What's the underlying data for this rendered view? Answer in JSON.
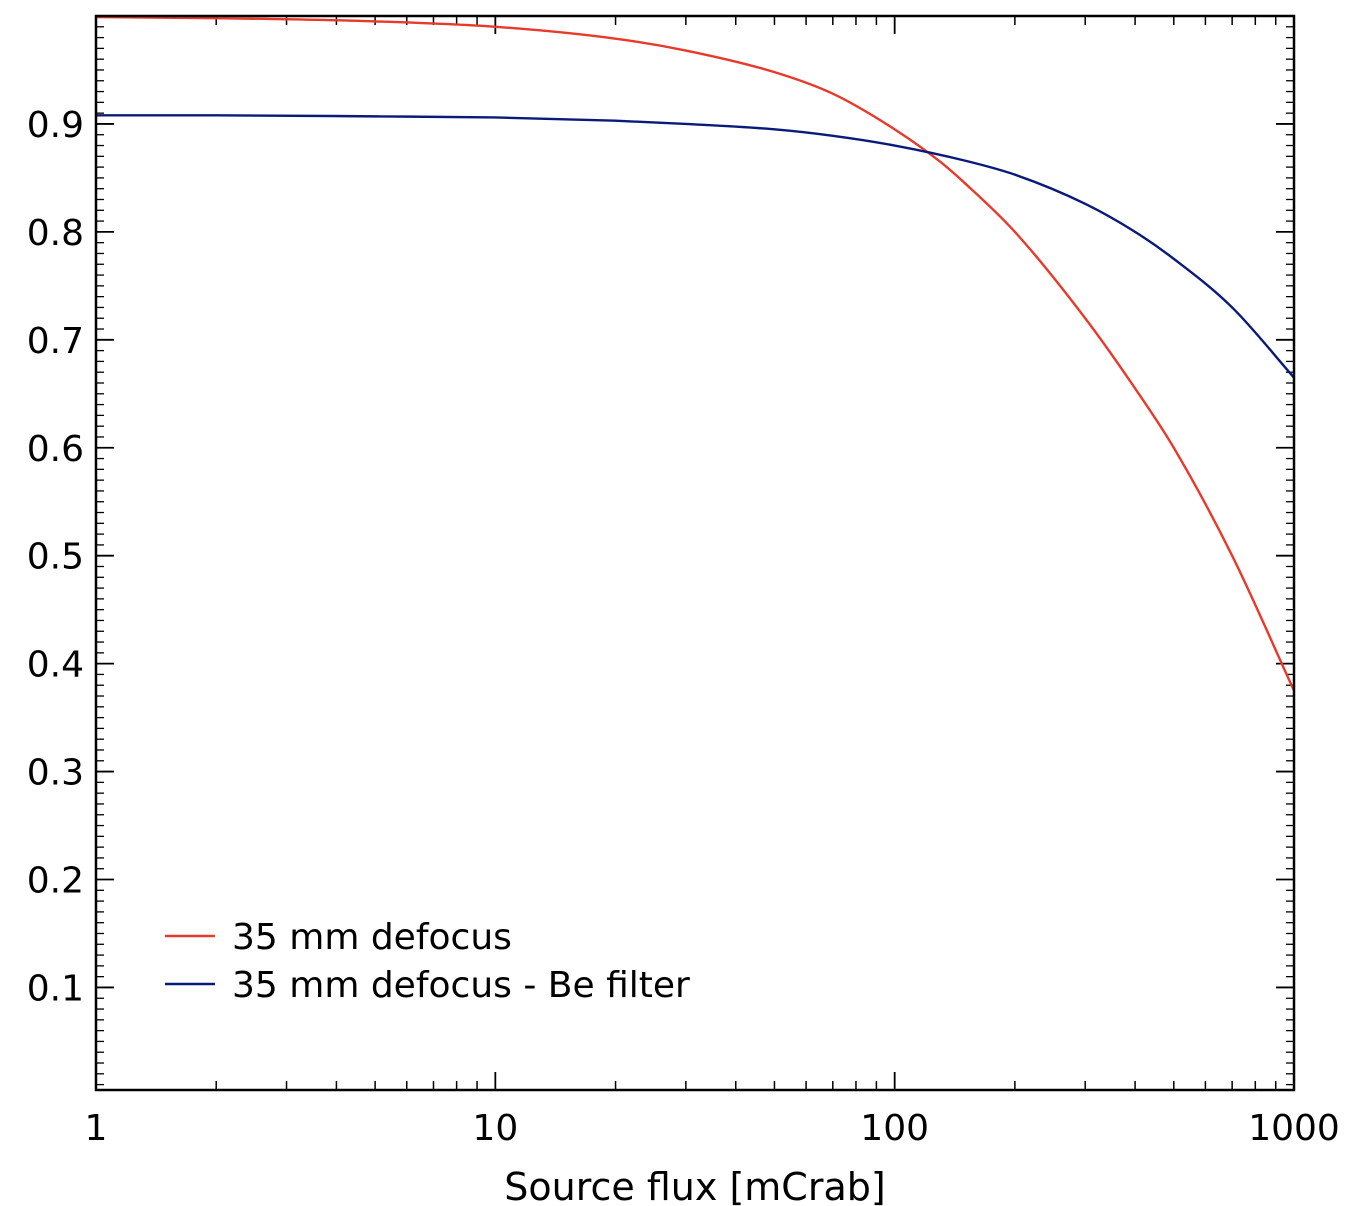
{
  "chart_data": {
    "type": "line",
    "title": "",
    "xlabel": "Source flux [mCrab]",
    "ylabel": "",
    "xscale": "log",
    "xlim": [
      1,
      1000
    ],
    "ylim": [
      0.005,
      1.0
    ],
    "x_ticks": [
      1,
      10,
      100,
      1000
    ],
    "x_tick_labels": [
      "1",
      "10",
      "100",
      "1000"
    ],
    "y_ticks": [
      0.1,
      0.2,
      0.3,
      0.4,
      0.5,
      0.6,
      0.7,
      0.8,
      0.9
    ],
    "y_tick_labels": [
      "0.1",
      "0.2",
      "0.3",
      "0.4",
      "0.5",
      "0.6",
      "0.7",
      "0.8",
      "0.9"
    ],
    "grid": false,
    "legend_position": "bottom-left",
    "series": [
      {
        "name": "35 mm defocus",
        "color": "#e8392a",
        "x": [
          1,
          2,
          5,
          10,
          20,
          30,
          50,
          70,
          100,
          130,
          150,
          200,
          300,
          400,
          500,
          700,
          1000
        ],
        "y": [
          0.999,
          0.998,
          0.995,
          0.99,
          0.979,
          0.968,
          0.948,
          0.928,
          0.895,
          0.865,
          0.845,
          0.8,
          0.72,
          0.655,
          0.6,
          0.5,
          0.375
        ]
      },
      {
        "name": "35 mm defocus - Be filter",
        "color": "#0a1a7a",
        "x": [
          1,
          2,
          5,
          10,
          20,
          30,
          50,
          70,
          100,
          150,
          200,
          300,
          400,
          500,
          700,
          1000
        ],
        "y": [
          0.908,
          0.908,
          0.907,
          0.906,
          0.903,
          0.9,
          0.895,
          0.889,
          0.88,
          0.866,
          0.853,
          0.826,
          0.8,
          0.775,
          0.73,
          0.665
        ]
      }
    ]
  }
}
